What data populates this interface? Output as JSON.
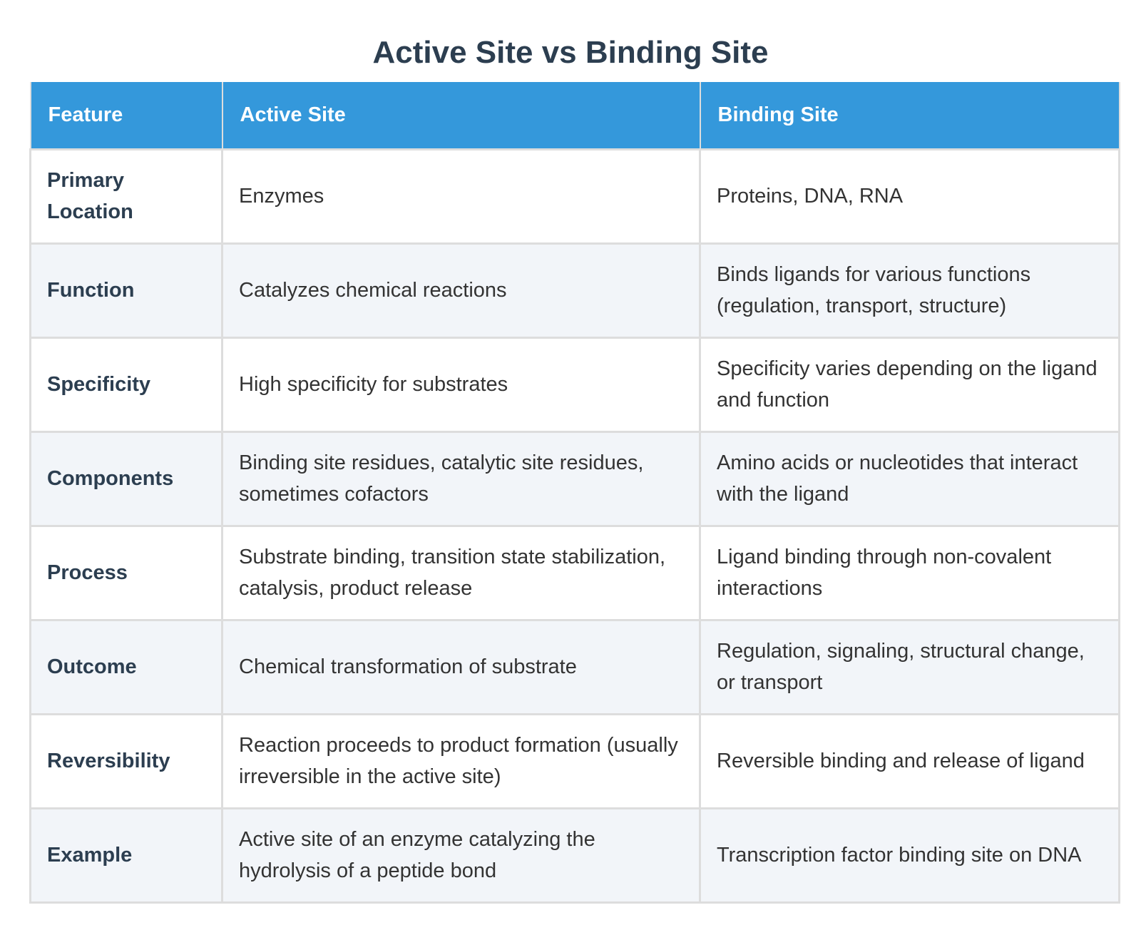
{
  "title": "Active Site vs Binding Site",
  "table": {
    "headers": [
      "Feature",
      "Active Site",
      "Binding Site"
    ],
    "rows": [
      [
        "Primary Location",
        "Enzymes",
        "Proteins, DNA, RNA"
      ],
      [
        "Function",
        "Catalyzes chemical reactions",
        "Binds ligands for various functions (regulation, transport, structure)"
      ],
      [
        "Specificity",
        "High specificity for substrates",
        "Specificity varies depending on the ligand and function"
      ],
      [
        "Components",
        "Binding site residues, catalytic site residues, sometimes cofactors",
        "Amino acids or nucleotides that interact with the ligand"
      ],
      [
        "Process",
        "Substrate binding, transition state stabilization, catalysis, product release",
        "Ligand binding through non-covalent interactions"
      ],
      [
        "Outcome",
        "Chemical transformation of substrate",
        "Regulation, signaling, structural change, or transport"
      ],
      [
        "Reversibility",
        "Reaction proceeds to product formation (usually irreversible in the active site)",
        "Reversible binding and release of ligand"
      ],
      [
        "Example",
        "Active site of an enzyme catalyzing the hydrolysis of a peptide bond",
        "Transcription factor binding site on DNA"
      ]
    ]
  },
  "colors": {
    "header_bg": "#3498db",
    "title": "#2c3e50",
    "row_alt": "#f2f5f9",
    "border": "#dddddd"
  }
}
